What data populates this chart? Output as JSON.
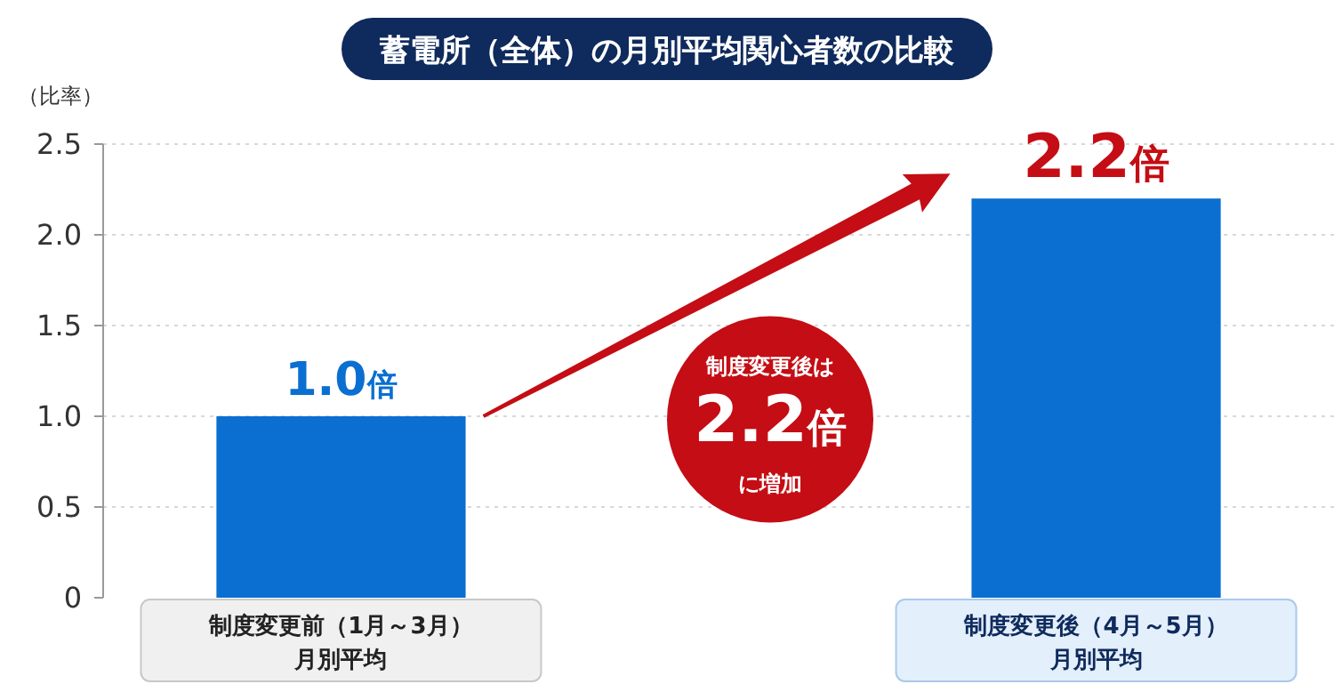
{
  "chart_data": {
    "type": "bar",
    "title": "蓄電所（全体）の月別平均関心者数の比較",
    "ylabel": "（比率）",
    "categories": [
      "制度変更前（1月～3月）月別平均",
      "制度変更後（4月～5月）月別平均"
    ],
    "values": [
      1.0,
      2.2
    ],
    "color": "#0a6fd0",
    "value_labels": [
      "1.0倍",
      "2.2倍"
    ],
    "ylim": [
      0,
      2.5
    ],
    "yticks": [
      0,
      {
        "value": 0.5,
        "label": "0.5"
      },
      {
        "value": 1,
        "label": "1.0"
      },
      {
        "value": 1.5,
        "label": "1.5"
      },
      {
        "value": 2,
        "label": "2.0"
      },
      2.5
    ],
    "grid": "y",
    "annotations": [
      "制度変更後は",
      "2.2倍",
      "に増加"
    ]
  }
}
